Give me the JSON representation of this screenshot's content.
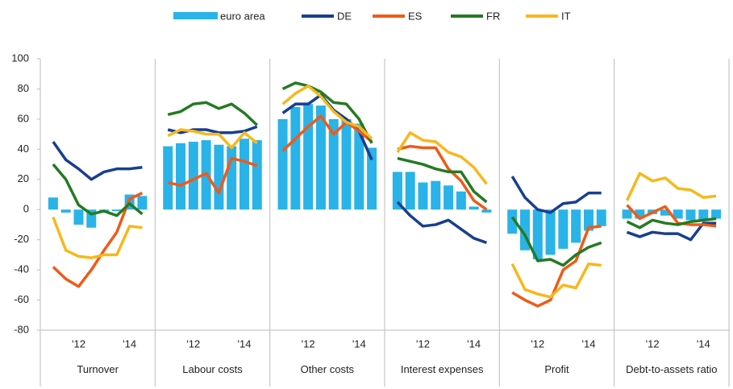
{
  "chart_data": {
    "type": "bar-line-panels",
    "ylim": [
      -80,
      100
    ],
    "yticks": [
      -80,
      -60,
      -40,
      -20,
      0,
      20,
      40,
      60,
      80,
      100
    ],
    "series": [
      {
        "name": "euro area",
        "type": "bar",
        "color": "#29b3e8"
      },
      {
        "name": "DE",
        "type": "line",
        "color": "#173f8f"
      },
      {
        "name": "ES",
        "type": "line",
        "color": "#f05a17"
      },
      {
        "name": "FR",
        "type": "line",
        "color": "#257a22"
      },
      {
        "name": "IT",
        "type": "line",
        "color": "#f7b81b"
      }
    ],
    "panels": [
      {
        "label": "Turnover",
        "categories": [
          null,
          null,
          "'12",
          null,
          null,
          null,
          "'14",
          null
        ],
        "series": [
          {
            "values": [
              8,
              -2,
              -10,
              -12,
              -2,
              -1,
              10,
              9
            ]
          },
          {
            "values": [
              45,
              33,
              27,
              20,
              25,
              27,
              27,
              28
            ]
          },
          {
            "values": [
              -38,
              -46,
              -51,
              -40,
              -27,
              -15,
              7,
              11
            ]
          },
          {
            "values": [
              30,
              20,
              3,
              -3,
              -1,
              -4,
              4,
              -3
            ]
          },
          {
            "values": [
              -5,
              -27,
              -31,
              -32,
              -30,
              -30,
              -11,
              -12
            ]
          }
        ]
      },
      {
        "label": "Labour costs",
        "categories": [
          null,
          null,
          "'12",
          null,
          null,
          null,
          "'14",
          null
        ],
        "series": [
          {
            "values": [
              42,
              44,
              45,
              46,
              43,
              42,
              47,
              46
            ]
          },
          {
            "values": [
              53,
              51,
              53,
              53,
              51,
              51,
              52,
              55
            ]
          },
          {
            "values": [
              18,
              16,
              20,
              24,
              11,
              34,
              32,
              29
            ]
          },
          {
            "values": [
              63,
              65,
              70,
              71,
              67,
              70,
              64,
              56
            ]
          },
          {
            "values": [
              49,
              53,
              52,
              50,
              50,
              41,
              51,
              44
            ]
          }
        ]
      },
      {
        "label": "Other costs",
        "categories": [
          null,
          null,
          "'12",
          null,
          null,
          null,
          "'14",
          null
        ],
        "series": [
          {
            "values": [
              60,
              68,
              70,
              69,
              60,
              60,
              57,
              41
            ]
          },
          {
            "values": [
              64,
              70,
              70,
              76,
              66,
              60,
              52,
              33
            ]
          },
          {
            "values": [
              39,
              47,
              55,
              62,
              50,
              58,
              52,
              45
            ]
          },
          {
            "values": [
              80,
              84,
              82,
              78,
              71,
              70,
              60,
              44
            ]
          },
          {
            "values": [
              70,
              77,
              82,
              75,
              65,
              58,
              55,
              47
            ]
          }
        ]
      },
      {
        "label": "Interest expenses",
        "categories": [
          null,
          null,
          "'12",
          null,
          null,
          null,
          "'14",
          null
        ],
        "series": [
          {
            "values": [
              25,
              25,
              18,
              19,
              16,
              12,
              2,
              -2
            ]
          },
          {
            "values": [
              5,
              -4,
              -11,
              -10,
              -7,
              -13,
              -19,
              -22
            ]
          },
          {
            "values": [
              40,
              42,
              41,
              41,
              27,
              19,
              6,
              0
            ]
          },
          {
            "values": [
              34,
              32,
              30,
              27,
              25,
              25,
              12,
              5
            ]
          },
          {
            "values": [
              38,
              51,
              46,
              45,
              38,
              35,
              28,
              17
            ]
          }
        ]
      },
      {
        "label": "Profit",
        "categories": [
          null,
          null,
          "'12",
          null,
          null,
          null,
          "'14",
          null
        ],
        "series": [
          {
            "values": [
              -16,
              -27,
              -33,
              -30,
              -26,
              -22,
              -14,
              -11
            ]
          },
          {
            "values": [
              22,
              8,
              0,
              -2,
              4,
              5,
              11,
              11
            ]
          },
          {
            "values": [
              -55,
              -60,
              -64,
              -60,
              -40,
              -34,
              -12,
              -11
            ]
          },
          {
            "values": [
              -5,
              -17,
              -34,
              -33,
              -37,
              -30,
              -25,
              -22
            ]
          },
          {
            "values": [
              -36,
              -53,
              -56,
              -58,
              -50,
              -52,
              -36,
              -37
            ]
          }
        ]
      },
      {
        "label": "Debt-to-assets ratio",
        "categories": [
          null,
          null,
          "'12",
          null,
          null,
          null,
          "'14",
          null
        ],
        "series": [
          {
            "values": [
              -6,
              -6,
              -3,
              -4,
              -6,
              -7,
              -7,
              -6
            ]
          },
          {
            "values": [
              -15,
              -18,
              -15,
              -16,
              -16,
              -20,
              -9,
              -9
            ]
          },
          {
            "values": [
              3,
              -6,
              -2,
              2,
              -9,
              -10,
              -10,
              -11
            ]
          },
          {
            "values": [
              -8,
              -12,
              -7,
              -9,
              -10,
              -8,
              -7,
              -6
            ]
          },
          {
            "values": [
              6,
              24,
              19,
              21,
              14,
              13,
              8,
              9
            ]
          }
        ]
      }
    ]
  }
}
